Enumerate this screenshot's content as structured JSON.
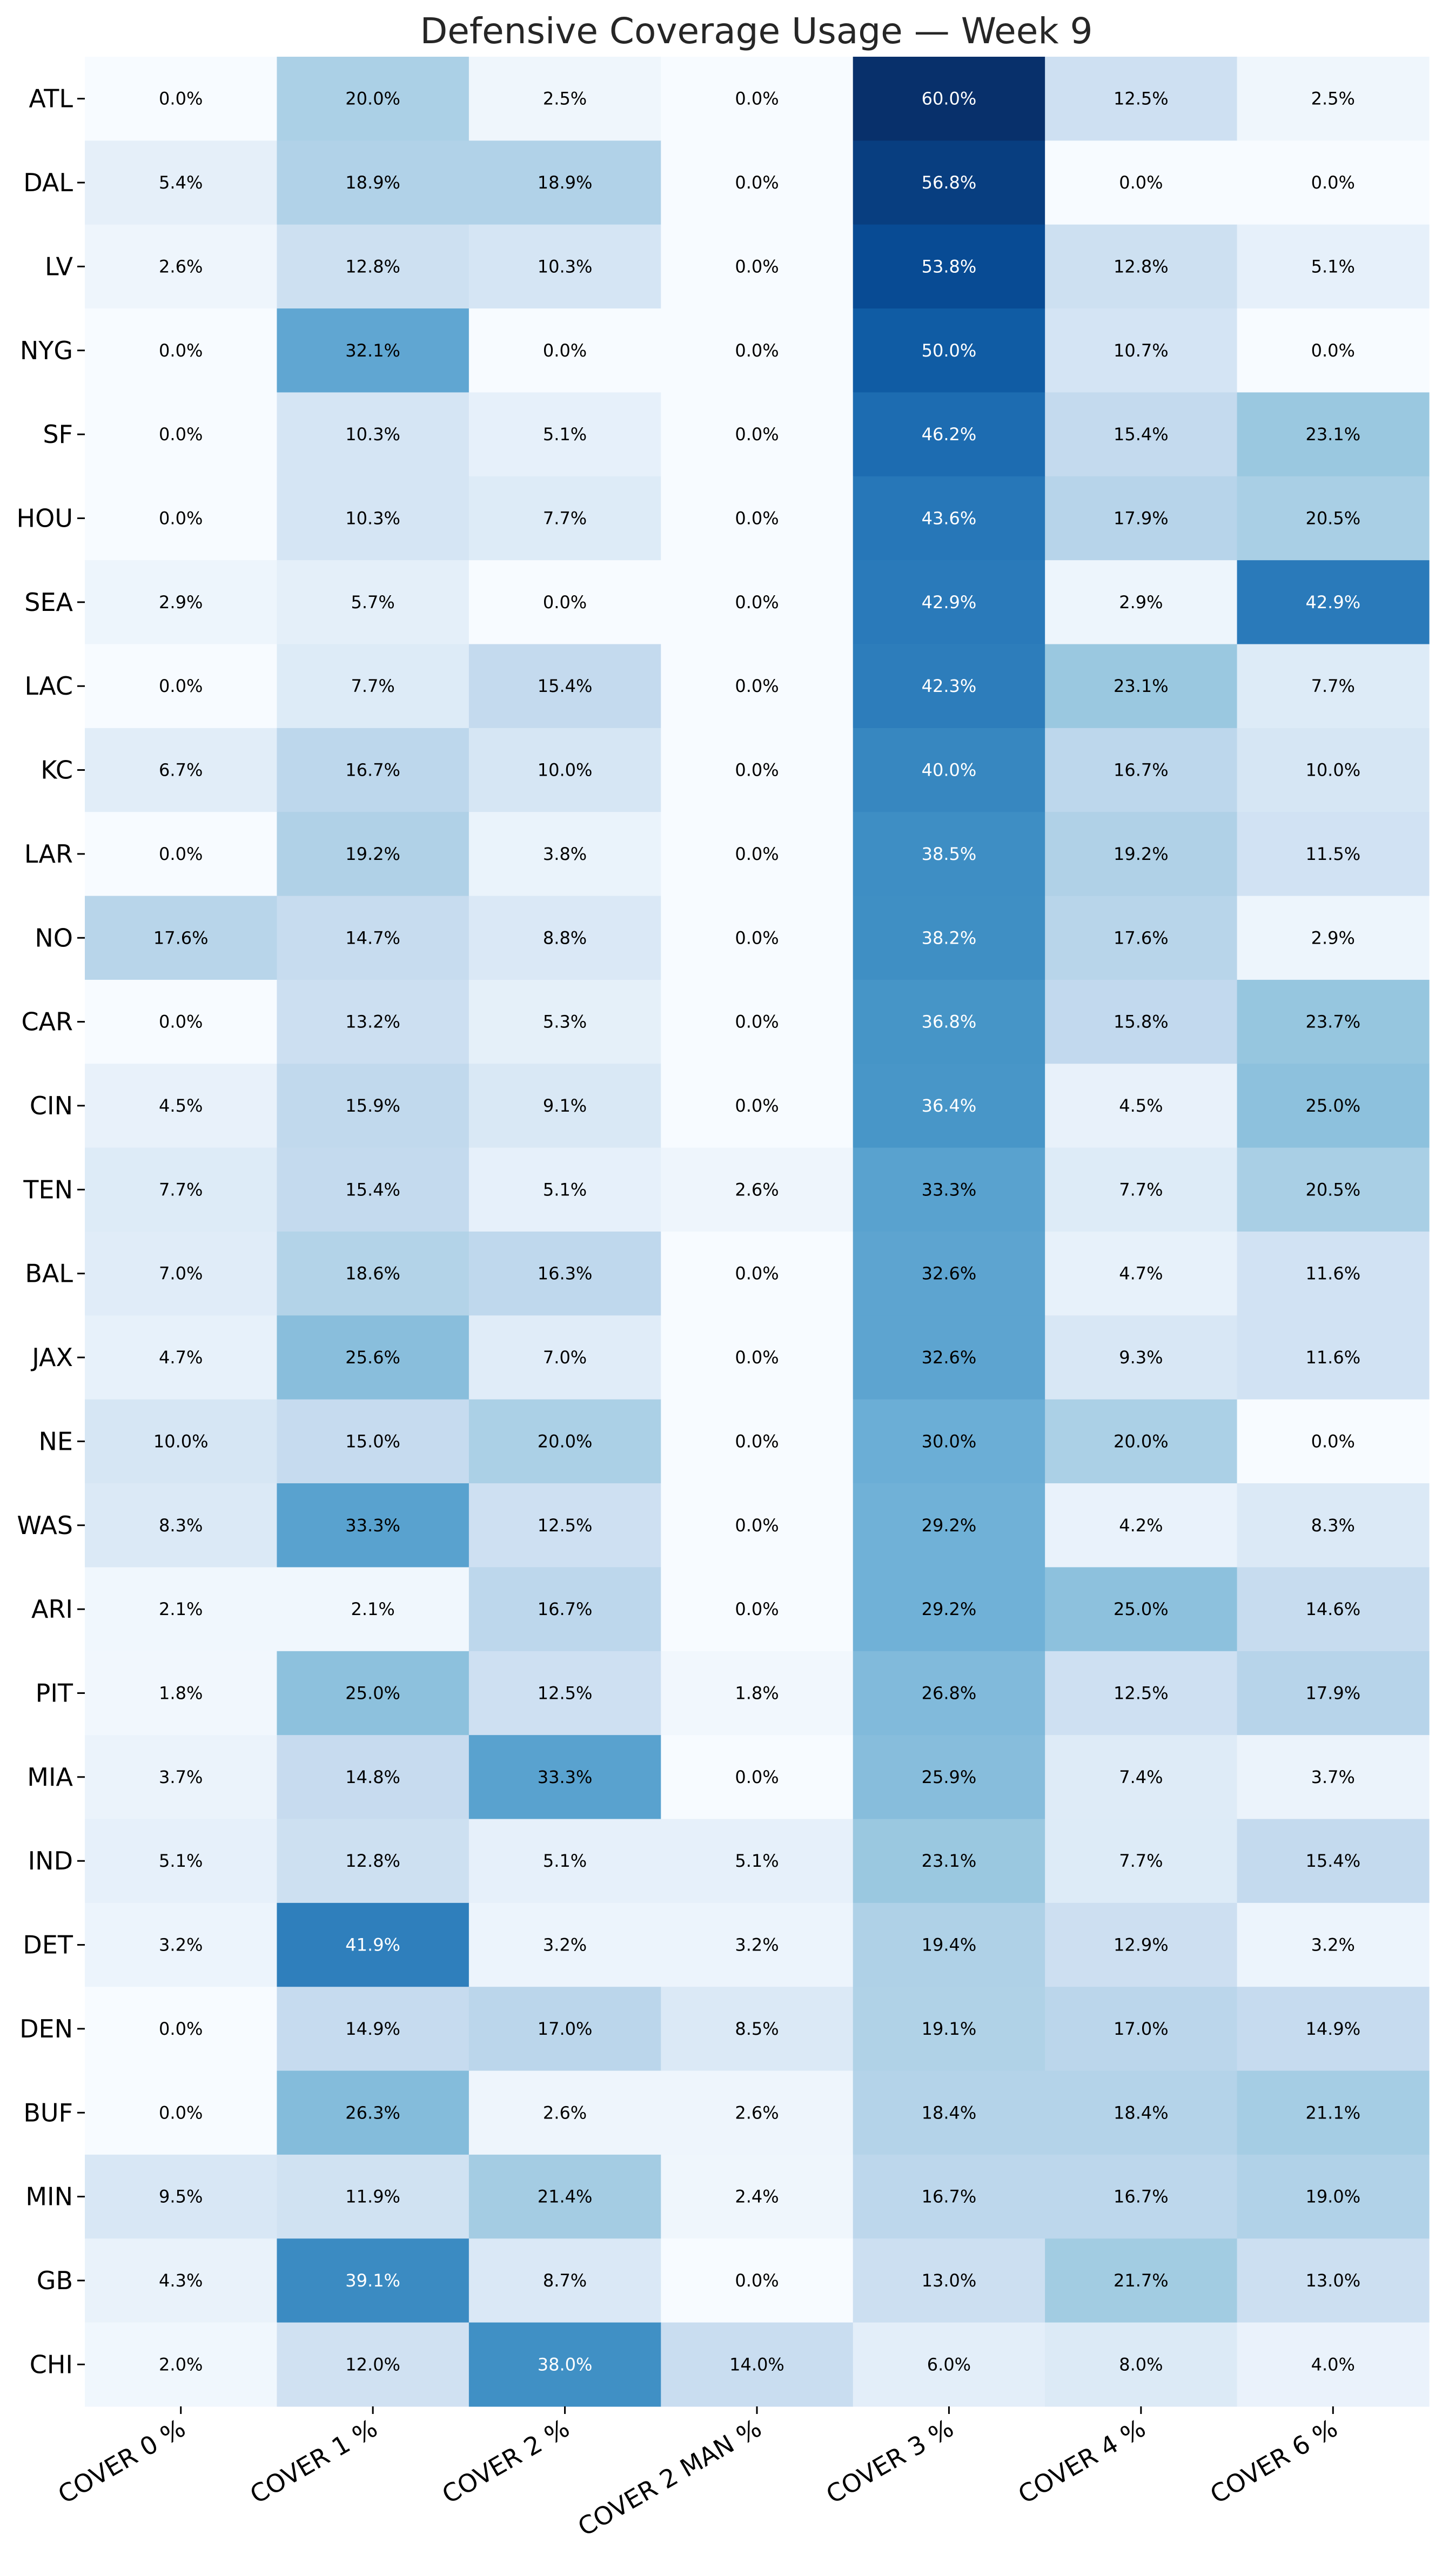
{
  "chart_data": {
    "type": "heatmap",
    "title": "Defensive Coverage Usage — Week 9",
    "colormap": "Blues",
    "value_range": [
      0,
      60
    ],
    "columns": [
      "COVER 0 %",
      "COVER 1 %",
      "COVER 2 %",
      "COVER 2 MAN %",
      "COVER 3 %",
      "COVER 4 %",
      "COVER 6 %"
    ],
    "rows": [
      "ATL",
      "DAL",
      "LV",
      "NYG",
      "SF",
      "HOU",
      "SEA",
      "LAC",
      "KC",
      "LAR",
      "NO",
      "CAR",
      "CIN",
      "TEN",
      "BAL",
      "JAX",
      "NE",
      "WAS",
      "ARI",
      "PIT",
      "MIA",
      "IND",
      "DET",
      "DEN",
      "BUF",
      "MIN",
      "GB",
      "CHI"
    ],
    "values": [
      [
        0.0,
        20.0,
        2.5,
        0.0,
        60.0,
        12.5,
        2.5
      ],
      [
        5.4,
        18.9,
        18.9,
        0.0,
        56.8,
        0.0,
        0.0
      ],
      [
        2.6,
        12.8,
        10.3,
        0.0,
        53.8,
        12.8,
        5.1
      ],
      [
        0.0,
        32.1,
        0.0,
        0.0,
        50.0,
        10.7,
        0.0
      ],
      [
        0.0,
        10.3,
        5.1,
        0.0,
        46.2,
        15.4,
        23.1
      ],
      [
        0.0,
        10.3,
        7.7,
        0.0,
        43.6,
        17.9,
        20.5
      ],
      [
        2.9,
        5.7,
        0.0,
        0.0,
        42.9,
        2.9,
        42.9
      ],
      [
        0.0,
        7.7,
        15.4,
        0.0,
        42.3,
        23.1,
        7.7
      ],
      [
        6.7,
        16.7,
        10.0,
        0.0,
        40.0,
        16.7,
        10.0
      ],
      [
        0.0,
        19.2,
        3.8,
        0.0,
        38.5,
        19.2,
        11.5
      ],
      [
        17.6,
        14.7,
        8.8,
        0.0,
        38.2,
        17.6,
        2.9
      ],
      [
        0.0,
        13.2,
        5.3,
        0.0,
        36.8,
        15.8,
        23.7
      ],
      [
        4.5,
        15.9,
        9.1,
        0.0,
        36.4,
        4.5,
        25.0
      ],
      [
        7.7,
        15.4,
        5.1,
        2.6,
        33.3,
        7.7,
        20.5
      ],
      [
        7.0,
        18.6,
        16.3,
        0.0,
        32.6,
        4.7,
        11.6
      ],
      [
        4.7,
        25.6,
        7.0,
        0.0,
        32.6,
        9.3,
        11.6
      ],
      [
        10.0,
        15.0,
        20.0,
        0.0,
        30.0,
        20.0,
        0.0
      ],
      [
        8.3,
        33.3,
        12.5,
        0.0,
        29.2,
        4.2,
        8.3
      ],
      [
        2.1,
        2.1,
        16.7,
        0.0,
        29.2,
        25.0,
        14.6
      ],
      [
        1.8,
        25.0,
        12.5,
        1.8,
        26.8,
        12.5,
        17.9
      ],
      [
        3.7,
        14.8,
        33.3,
        0.0,
        25.9,
        7.4,
        3.7
      ],
      [
        5.1,
        12.8,
        5.1,
        5.1,
        23.1,
        7.7,
        15.4
      ],
      [
        3.2,
        41.9,
        3.2,
        3.2,
        19.4,
        12.9,
        3.2
      ],
      [
        0.0,
        14.9,
        17.0,
        8.5,
        19.1,
        17.0,
        14.9
      ],
      [
        0.0,
        26.3,
        2.6,
        2.6,
        18.4,
        18.4,
        21.1
      ],
      [
        9.5,
        11.9,
        21.4,
        2.4,
        16.7,
        16.7,
        19.0
      ],
      [
        4.3,
        39.1,
        8.7,
        0.0,
        13.0,
        21.7,
        13.0
      ],
      [
        2.0,
        12.0,
        38.0,
        14.0,
        6.0,
        8.0,
        4.0
      ]
    ],
    "value_suffix": "%",
    "annotated": true,
    "colorbar": false,
    "grid": false
  }
}
